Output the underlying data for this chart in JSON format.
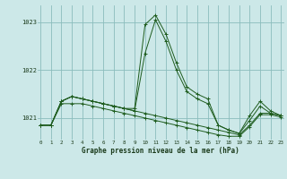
{
  "title": "Graphe pression niveau de la mer (hPa)",
  "background_color": "#cce8e8",
  "grid_color": "#8bbcbc",
  "line_color": "#1e5c1e",
  "x_ticks": [
    0,
    1,
    2,
    3,
    4,
    5,
    6,
    7,
    8,
    9,
    10,
    11,
    12,
    13,
    14,
    15,
    16,
    17,
    18,
    19,
    20,
    21,
    22,
    23
  ],
  "y_ticks": [
    1021,
    1022,
    1023
  ],
  "ylim": [
    1020.55,
    1023.35
  ],
  "xlim": [
    -0.3,
    23.3
  ],
  "series": [
    [
      1020.85,
      1020.85,
      1021.35,
      1021.45,
      1021.4,
      1021.35,
      1021.3,
      1021.25,
      1021.2,
      1021.15,
      1021.1,
      1021.05,
      1021.0,
      1020.95,
      1020.9,
      1020.85,
      1020.8,
      1020.75,
      1020.7,
      1020.65,
      1020.85,
      1021.1,
      1021.1,
      1021.05
    ],
    [
      1020.85,
      1020.85,
      1021.35,
      1021.45,
      1021.4,
      1021.35,
      1021.3,
      1021.25,
      1021.2,
      1021.15,
      1022.35,
      1023.05,
      1022.6,
      1022.0,
      1021.55,
      1021.4,
      1021.3,
      1020.85,
      1020.75,
      1020.68,
      1020.95,
      1021.25,
      1021.1,
      1021.05
    ],
    [
      1020.85,
      1020.85,
      1021.35,
      1021.45,
      1021.4,
      1021.35,
      1021.3,
      1021.25,
      1021.2,
      1021.2,
      1022.95,
      1023.15,
      1022.75,
      1022.15,
      1021.65,
      1021.5,
      1021.4,
      1020.85,
      1020.75,
      1020.68,
      1021.05,
      1021.35,
      1021.15,
      1021.05
    ],
    [
      1020.85,
      1020.85,
      1021.3,
      1021.3,
      1021.3,
      1021.25,
      1021.2,
      1021.15,
      1021.1,
      1021.05,
      1021.0,
      1020.95,
      1020.9,
      1020.85,
      1020.8,
      1020.75,
      1020.7,
      1020.65,
      1020.62,
      1020.62,
      1020.82,
      1021.07,
      1021.07,
      1021.02
    ]
  ]
}
